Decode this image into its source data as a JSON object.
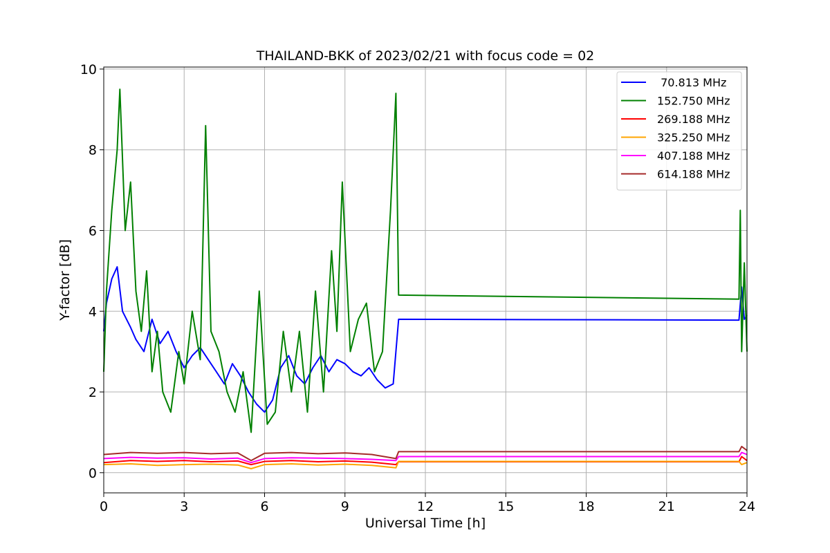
{
  "chart_data": {
    "type": "line",
    "title": "THAILAND-BKK of 2023/02/21 with focus code = 02",
    "xlabel": "Universal Time [h]",
    "ylabel": "Y-factor [dB]",
    "xlim": [
      0,
      24
    ],
    "ylim": [
      -0.5,
      10.05
    ],
    "xticks": [
      0,
      3,
      6,
      9,
      12,
      15,
      18,
      21,
      24
    ],
    "xtick_labels": [
      "0",
      "3",
      "6",
      "9",
      "12",
      "15",
      "18",
      "21",
      "24"
    ],
    "yticks": [
      0,
      2,
      4,
      6,
      8,
      10
    ],
    "ytick_labels": [
      "0",
      "2",
      "4",
      "6",
      "8",
      "10"
    ],
    "grid": true,
    "legend_position": "top-right",
    "series": [
      {
        "name": " 70.813 MHz",
        "color": "#0000ff",
        "x": [
          0.0,
          0.1,
          0.3,
          0.5,
          0.7,
          1.0,
          1.2,
          1.5,
          1.8,
          2.1,
          2.4,
          2.7,
          3.0,
          3.3,
          3.6,
          3.9,
          4.2,
          4.5,
          4.8,
          5.1,
          5.4,
          5.7,
          6.0,
          6.3,
          6.6,
          6.9,
          7.2,
          7.5,
          7.8,
          8.1,
          8.4,
          8.7,
          9.0,
          9.3,
          9.6,
          9.9,
          10.2,
          10.5,
          10.8,
          11.0,
          23.7,
          23.8,
          23.9,
          24.0
        ],
        "y": [
          3.5,
          4.2,
          4.8,
          5.1,
          4.0,
          3.6,
          3.3,
          3.0,
          3.8,
          3.2,
          3.5,
          3.0,
          2.6,
          2.9,
          3.1,
          2.8,
          2.5,
          2.2,
          2.7,
          2.4,
          2.0,
          1.7,
          1.5,
          1.8,
          2.6,
          2.9,
          2.4,
          2.2,
          2.6,
          2.9,
          2.5,
          2.8,
          2.7,
          2.5,
          2.4,
          2.6,
          2.3,
          2.1,
          2.2,
          3.8,
          3.78,
          4.6,
          3.8,
          3.9
        ]
      },
      {
        "name": "152.750 MHz",
        "color": "#008000",
        "x": [
          0.0,
          0.1,
          0.3,
          0.5,
          0.6,
          0.8,
          1.0,
          1.2,
          1.4,
          1.6,
          1.8,
          2.0,
          2.2,
          2.5,
          2.8,
          3.0,
          3.3,
          3.6,
          3.8,
          4.0,
          4.3,
          4.6,
          4.9,
          5.2,
          5.5,
          5.8,
          6.1,
          6.4,
          6.7,
          7.0,
          7.3,
          7.6,
          7.9,
          8.2,
          8.5,
          8.7,
          8.9,
          9.2,
          9.5,
          9.8,
          10.1,
          10.4,
          10.7,
          10.9,
          11.0,
          23.7,
          23.75,
          23.8,
          23.9,
          24.0
        ],
        "y": [
          2.5,
          4.5,
          6.5,
          8.0,
          9.5,
          6.0,
          7.2,
          4.5,
          3.5,
          5.0,
          2.5,
          3.5,
          2.0,
          1.5,
          3.0,
          2.2,
          4.0,
          2.8,
          8.6,
          3.5,
          3.0,
          2.0,
          1.5,
          2.5,
          1.0,
          4.5,
          1.2,
          1.5,
          3.5,
          2.0,
          3.5,
          1.5,
          4.5,
          2.0,
          5.5,
          3.5,
          7.2,
          3.0,
          3.8,
          4.2,
          2.5,
          3.0,
          6.5,
          9.4,
          4.4,
          4.3,
          6.5,
          3.0,
          5.2,
          3.0
        ]
      },
      {
        "name": "269.188 MHz",
        "color": "#ff0000",
        "x": [
          0.0,
          1.0,
          2.0,
          3.0,
          4.0,
          5.0,
          5.5,
          6.0,
          7.0,
          8.0,
          9.0,
          10.0,
          10.9,
          11.0,
          23.7,
          23.8,
          24.0
        ],
        "y": [
          0.25,
          0.3,
          0.28,
          0.3,
          0.27,
          0.29,
          0.2,
          0.28,
          0.3,
          0.27,
          0.29,
          0.26,
          0.2,
          0.27,
          0.27,
          0.4,
          0.3
        ]
      },
      {
        "name": "325.250 MHz",
        "color": "#ffa500",
        "x": [
          0.0,
          1.0,
          2.0,
          3.0,
          4.0,
          5.0,
          5.5,
          6.0,
          7.0,
          8.0,
          9.0,
          10.0,
          10.9,
          11.0,
          23.7,
          23.8,
          24.0
        ],
        "y": [
          0.2,
          0.22,
          0.18,
          0.2,
          0.21,
          0.19,
          0.1,
          0.2,
          0.22,
          0.19,
          0.21,
          0.18,
          0.12,
          0.28,
          0.28,
          0.2,
          0.25
        ]
      },
      {
        "name": "407.188 MHz",
        "color": "#ff00ff",
        "x": [
          0.0,
          1.0,
          2.0,
          3.0,
          4.0,
          5.0,
          5.5,
          6.0,
          7.0,
          8.0,
          9.0,
          10.0,
          10.9,
          11.0,
          23.7,
          23.8,
          24.0
        ],
        "y": [
          0.35,
          0.38,
          0.36,
          0.37,
          0.34,
          0.36,
          0.25,
          0.35,
          0.37,
          0.36,
          0.35,
          0.33,
          0.3,
          0.4,
          0.4,
          0.5,
          0.45
        ]
      },
      {
        "name": "614.188 MHz",
        "color": "#a52a2a",
        "x": [
          0.0,
          1.0,
          2.0,
          3.0,
          4.0,
          5.0,
          5.5,
          6.0,
          7.0,
          8.0,
          9.0,
          10.0,
          10.9,
          11.0,
          23.7,
          23.8,
          24.0
        ],
        "y": [
          0.45,
          0.5,
          0.48,
          0.5,
          0.47,
          0.49,
          0.3,
          0.48,
          0.5,
          0.47,
          0.49,
          0.45,
          0.35,
          0.52,
          0.52,
          0.65,
          0.55
        ]
      }
    ]
  }
}
